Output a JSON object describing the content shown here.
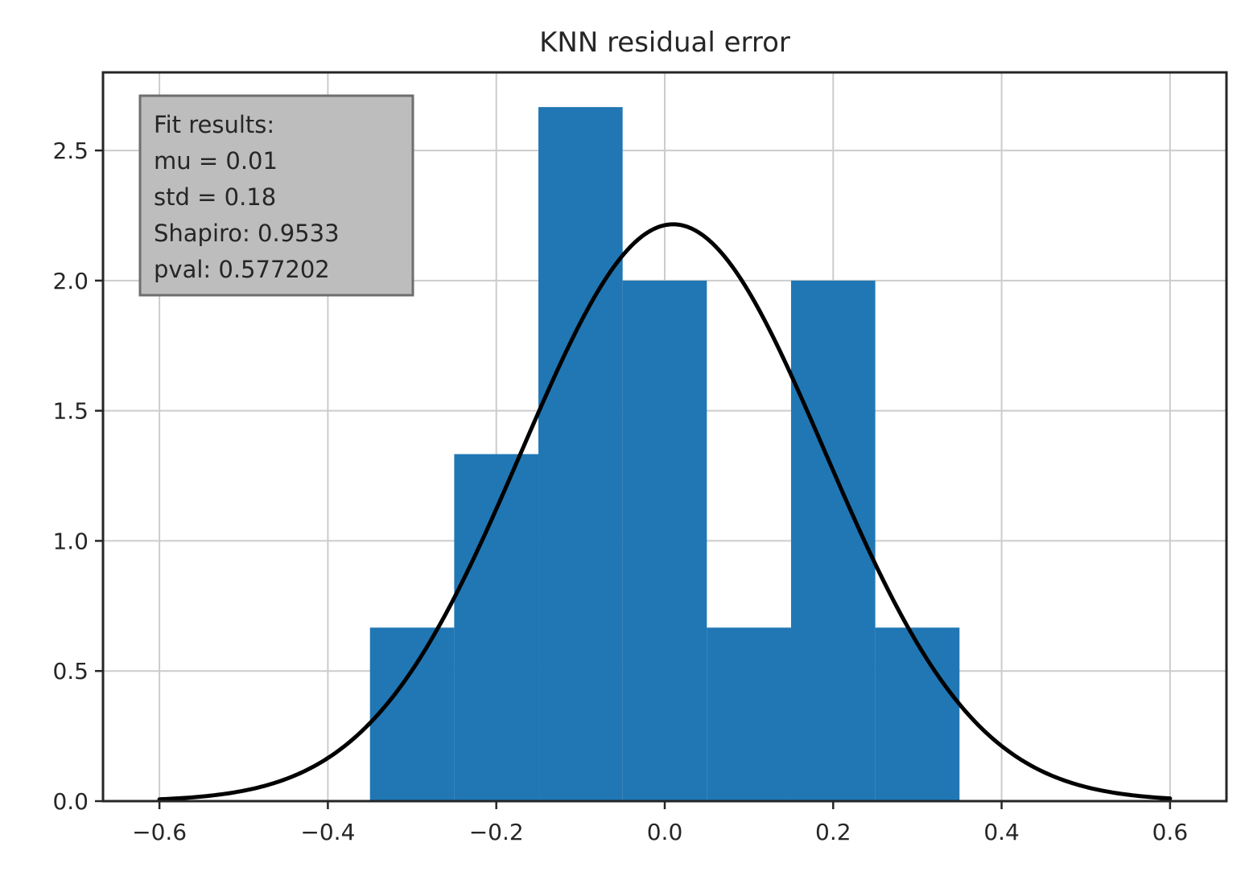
{
  "chart_data": {
    "type": "bar",
    "title": "KNN residual error",
    "xlabel": "",
    "ylabel": "",
    "xlim": [
      -0.667,
      0.667
    ],
    "ylim": [
      0,
      2.8
    ],
    "grid": true,
    "histogram": {
      "bin_edges": [
        -0.35,
        -0.25,
        -0.15,
        -0.05,
        0.05,
        0.15,
        0.25,
        0.35
      ],
      "values": [
        0.6667,
        1.3333,
        2.6667,
        2.0,
        0.6667,
        2.0,
        0.6667
      ],
      "color": "#2077b4"
    },
    "fit_curve": {
      "type": "line",
      "distribution": "normal",
      "mu": 0.01,
      "std": 0.18,
      "x_range": [
        -0.6,
        0.6
      ],
      "color": "#000000"
    },
    "x_ticks": [
      {
        "value": -0.6,
        "label": "−0.6"
      },
      {
        "value": -0.4,
        "label": "−0.4"
      },
      {
        "value": -0.2,
        "label": "−0.2"
      },
      {
        "value": 0.0,
        "label": "0.0"
      },
      {
        "value": 0.2,
        "label": "0.2"
      },
      {
        "value": 0.4,
        "label": "0.4"
      },
      {
        "value": 0.6,
        "label": "0.6"
      }
    ],
    "y_ticks": [
      {
        "value": 0.0,
        "label": "0.0"
      },
      {
        "value": 0.5,
        "label": "0.5"
      },
      {
        "value": 1.0,
        "label": "1.0"
      },
      {
        "value": 1.5,
        "label": "1.5"
      },
      {
        "value": 2.0,
        "label": "2.0"
      },
      {
        "value": 2.5,
        "label": "2.5"
      }
    ],
    "annotation": {
      "lines": [
        "Fit results:",
        "mu = 0.01",
        "std = 0.18",
        "Shapiro: 0.9533",
        "pval: 0.577202"
      ],
      "placement": "top-left",
      "background": "#bdbdbd"
    }
  }
}
